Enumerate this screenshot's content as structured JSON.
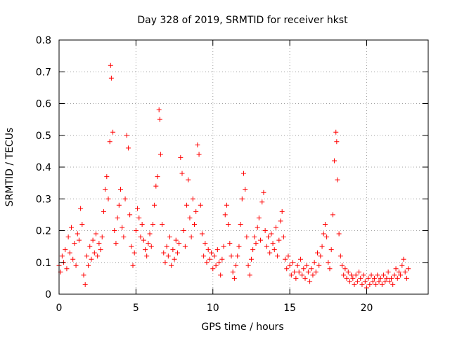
{
  "chart_data": {
    "type": "scatter",
    "title": "Day 328 of 2019, SRMTID for receiver hkst",
    "xlabel": "GPS time / hours",
    "ylabel": "SRMTID / TECUs",
    "xlim": [
      0,
      24
    ],
    "ylim": [
      0,
      0.8
    ],
    "xticks": [
      0,
      5,
      10,
      15,
      20
    ],
    "xtick_labels": [
      "0",
      "5",
      "10",
      "15",
      "20"
    ],
    "yticks": [
      0,
      0.1,
      0.2,
      0.3,
      0.4,
      0.5,
      0.6,
      0.7,
      0.8
    ],
    "ytick_labels": [
      "0",
      "0.1",
      "0.2",
      "0.3",
      "0.4",
      "0.5",
      "0.6",
      "0.7",
      "0.8"
    ],
    "grid": true,
    "marker": "plus",
    "marker_color": "#ff0000",
    "series": [
      {
        "name": "SRMTID",
        "points": [
          [
            0.0,
            0.09
          ],
          [
            0.1,
            0.07
          ],
          [
            0.2,
            0.12
          ],
          [
            0.3,
            0.1
          ],
          [
            0.4,
            0.14
          ],
          [
            0.5,
            0.08
          ],
          [
            0.6,
            0.18
          ],
          [
            0.7,
            0.13
          ],
          [
            0.8,
            0.21
          ],
          [
            0.9,
            0.11
          ],
          [
            1.0,
            0.16
          ],
          [
            1.1,
            0.09
          ],
          [
            1.2,
            0.19
          ],
          [
            1.3,
            0.17
          ],
          [
            1.4,
            0.27
          ],
          [
            1.5,
            0.22
          ],
          [
            1.6,
            0.06
          ],
          [
            1.7,
            0.03
          ],
          [
            1.8,
            0.12
          ],
          [
            1.9,
            0.09
          ],
          [
            2.0,
            0.15
          ],
          [
            2.1,
            0.11
          ],
          [
            2.2,
            0.17
          ],
          [
            2.3,
            0.13
          ],
          [
            2.4,
            0.19
          ],
          [
            2.5,
            0.12
          ],
          [
            2.6,
            0.16
          ],
          [
            2.7,
            0.14
          ],
          [
            2.8,
            0.18
          ],
          [
            2.9,
            0.26
          ],
          [
            3.0,
            0.33
          ],
          [
            3.1,
            0.37
          ],
          [
            3.2,
            0.3
          ],
          [
            3.3,
            0.48
          ],
          [
            3.35,
            0.72
          ],
          [
            3.4,
            0.68
          ],
          [
            3.5,
            0.51
          ],
          [
            3.6,
            0.2
          ],
          [
            3.7,
            0.16
          ],
          [
            3.8,
            0.24
          ],
          [
            3.9,
            0.28
          ],
          [
            4.0,
            0.33
          ],
          [
            4.1,
            0.21
          ],
          [
            4.2,
            0.18
          ],
          [
            4.3,
            0.3
          ],
          [
            4.4,
            0.5
          ],
          [
            4.5,
            0.46
          ],
          [
            4.6,
            0.25
          ],
          [
            4.7,
            0.15
          ],
          [
            4.8,
            0.09
          ],
          [
            4.9,
            0.13
          ],
          [
            5.0,
            0.2
          ],
          [
            5.1,
            0.27
          ],
          [
            5.2,
            0.24
          ],
          [
            5.3,
            0.18
          ],
          [
            5.4,
            0.22
          ],
          [
            5.5,
            0.17
          ],
          [
            5.6,
            0.14
          ],
          [
            5.7,
            0.12
          ],
          [
            5.8,
            0.16
          ],
          [
            5.9,
            0.19
          ],
          [
            6.0,
            0.15
          ],
          [
            6.1,
            0.22
          ],
          [
            6.2,
            0.28
          ],
          [
            6.3,
            0.34
          ],
          [
            6.4,
            0.37
          ],
          [
            6.5,
            0.58
          ],
          [
            6.55,
            0.55
          ],
          [
            6.6,
            0.44
          ],
          [
            6.7,
            0.22
          ],
          [
            6.8,
            0.13
          ],
          [
            6.9,
            0.1
          ],
          [
            7.0,
            0.15
          ],
          [
            7.1,
            0.12
          ],
          [
            7.2,
            0.18
          ],
          [
            7.3,
            0.09
          ],
          [
            7.4,
            0.14
          ],
          [
            7.5,
            0.11
          ],
          [
            7.6,
            0.17
          ],
          [
            7.7,
            0.13
          ],
          [
            7.8,
            0.16
          ],
          [
            7.9,
            0.43
          ],
          [
            8.0,
            0.38
          ],
          [
            8.1,
            0.2
          ],
          [
            8.2,
            0.15
          ],
          [
            8.3,
            0.28
          ],
          [
            8.4,
            0.36
          ],
          [
            8.5,
            0.24
          ],
          [
            8.6,
            0.18
          ],
          [
            8.7,
            0.3
          ],
          [
            8.8,
            0.22
          ],
          [
            8.9,
            0.26
          ],
          [
            9.0,
            0.47
          ],
          [
            9.1,
            0.44
          ],
          [
            9.2,
            0.28
          ],
          [
            9.3,
            0.19
          ],
          [
            9.4,
            0.12
          ],
          [
            9.5,
            0.16
          ],
          [
            9.6,
            0.1
          ],
          [
            9.7,
            0.14
          ],
          [
            9.8,
            0.11
          ],
          [
            9.9,
            0.13
          ],
          [
            10.0,
            0.08
          ],
          [
            10.1,
            0.12
          ],
          [
            10.2,
            0.09
          ],
          [
            10.3,
            0.14
          ],
          [
            10.4,
            0.1
          ],
          [
            10.5,
            0.06
          ],
          [
            10.6,
            0.11
          ],
          [
            10.7,
            0.15
          ],
          [
            10.8,
            0.25
          ],
          [
            10.9,
            0.28
          ],
          [
            11.0,
            0.22
          ],
          [
            11.1,
            0.16
          ],
          [
            11.2,
            0.12
          ],
          [
            11.3,
            0.07
          ],
          [
            11.4,
            0.05
          ],
          [
            11.5,
            0.09
          ],
          [
            11.6,
            0.12
          ],
          [
            11.7,
            0.15
          ],
          [
            11.8,
            0.22
          ],
          [
            11.9,
            0.3
          ],
          [
            12.0,
            0.38
          ],
          [
            12.1,
            0.33
          ],
          [
            12.2,
            0.18
          ],
          [
            12.3,
            0.09
          ],
          [
            12.4,
            0.06
          ],
          [
            12.5,
            0.11
          ],
          [
            12.6,
            0.14
          ],
          [
            12.7,
            0.18
          ],
          [
            12.8,
            0.16
          ],
          [
            12.9,
            0.21
          ],
          [
            13.0,
            0.24
          ],
          [
            13.1,
            0.17
          ],
          [
            13.2,
            0.29
          ],
          [
            13.3,
            0.32
          ],
          [
            13.4,
            0.2
          ],
          [
            13.5,
            0.15
          ],
          [
            13.6,
            0.18
          ],
          [
            13.7,
            0.13
          ],
          [
            13.8,
            0.19
          ],
          [
            13.9,
            0.16
          ],
          [
            14.0,
            0.14
          ],
          [
            14.1,
            0.21
          ],
          [
            14.2,
            0.12
          ],
          [
            14.3,
            0.17
          ],
          [
            14.4,
            0.23
          ],
          [
            14.5,
            0.26
          ],
          [
            14.6,
            0.18
          ],
          [
            14.7,
            0.11
          ],
          [
            14.8,
            0.08
          ],
          [
            14.9,
            0.12
          ],
          [
            15.0,
            0.09
          ],
          [
            15.1,
            0.06
          ],
          [
            15.2,
            0.1
          ],
          [
            15.3,
            0.07
          ],
          [
            15.4,
            0.05
          ],
          [
            15.5,
            0.09
          ],
          [
            15.6,
            0.07
          ],
          [
            15.7,
            0.11
          ],
          [
            15.8,
            0.06
          ],
          [
            15.9,
            0.08
          ],
          [
            16.0,
            0.05
          ],
          [
            16.1,
            0.09
          ],
          [
            16.2,
            0.07
          ],
          [
            16.3,
            0.04
          ],
          [
            16.4,
            0.08
          ],
          [
            16.5,
            0.06
          ],
          [
            16.6,
            0.1
          ],
          [
            16.7,
            0.07
          ],
          [
            16.8,
            0.13
          ],
          [
            16.9,
            0.09
          ],
          [
            17.0,
            0.12
          ],
          [
            17.1,
            0.15
          ],
          [
            17.2,
            0.19
          ],
          [
            17.3,
            0.22
          ],
          [
            17.4,
            0.18
          ],
          [
            17.5,
            0.1
          ],
          [
            17.6,
            0.08
          ],
          [
            17.7,
            0.14
          ],
          [
            17.8,
            0.25
          ],
          [
            17.9,
            0.42
          ],
          [
            18.0,
            0.51
          ],
          [
            18.05,
            0.48
          ],
          [
            18.1,
            0.36
          ],
          [
            18.2,
            0.19
          ],
          [
            18.3,
            0.12
          ],
          [
            18.4,
            0.09
          ],
          [
            18.5,
            0.06
          ],
          [
            18.6,
            0.08
          ],
          [
            18.7,
            0.05
          ],
          [
            18.8,
            0.07
          ],
          [
            18.9,
            0.04
          ],
          [
            19.0,
            0.06
          ],
          [
            19.1,
            0.05
          ],
          [
            19.2,
            0.03
          ],
          [
            19.3,
            0.06
          ],
          [
            19.4,
            0.04
          ],
          [
            19.5,
            0.07
          ],
          [
            19.6,
            0.05
          ],
          [
            19.7,
            0.03
          ],
          [
            19.8,
            0.06
          ],
          [
            19.9,
            0.04
          ],
          [
            20.0,
            0.02
          ],
          [
            20.1,
            0.05
          ],
          [
            20.2,
            0.03
          ],
          [
            20.3,
            0.06
          ],
          [
            20.4,
            0.04
          ],
          [
            20.5,
            0.05
          ],
          [
            20.6,
            0.03
          ],
          [
            20.7,
            0.06
          ],
          [
            20.8,
            0.04
          ],
          [
            20.9,
            0.05
          ],
          [
            21.0,
            0.03
          ],
          [
            21.1,
            0.06
          ],
          [
            21.2,
            0.04
          ],
          [
            21.3,
            0.05
          ],
          [
            21.4,
            0.07
          ],
          [
            21.5,
            0.04
          ],
          [
            21.6,
            0.05
          ],
          [
            21.7,
            0.03
          ],
          [
            21.8,
            0.06
          ],
          [
            21.9,
            0.08
          ],
          [
            22.0,
            0.05
          ],
          [
            22.1,
            0.07
          ],
          [
            22.2,
            0.06
          ],
          [
            22.3,
            0.09
          ],
          [
            22.4,
            0.11
          ],
          [
            22.5,
            0.07
          ],
          [
            22.6,
            0.05
          ],
          [
            22.7,
            0.08
          ]
        ]
      }
    ]
  }
}
